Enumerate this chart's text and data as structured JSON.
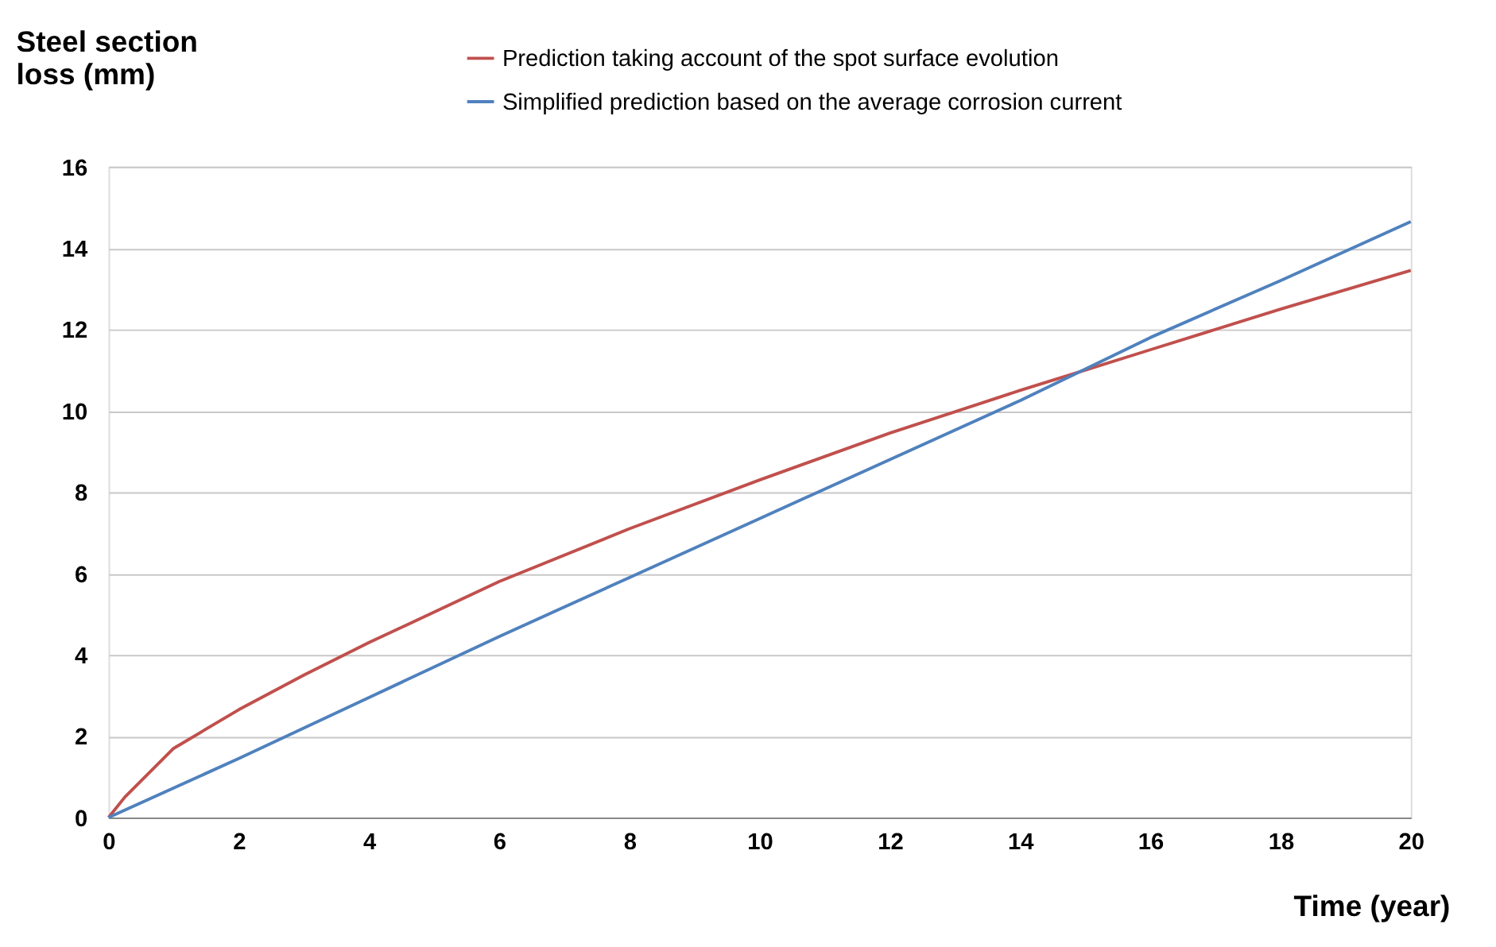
{
  "chart_data": {
    "type": "line",
    "xlabel": "Time (year)",
    "ylabel": "Steel section\nloss (mm)",
    "xlim": [
      0,
      20
    ],
    "xticks": [
      0,
      2,
      4,
      6,
      8,
      10,
      12,
      14,
      16,
      18,
      20
    ],
    "ylim": [
      0,
      16
    ],
    "yticks": [
      0,
      2,
      4,
      6,
      8,
      10,
      12,
      14,
      16
    ],
    "grid": "y",
    "legend": "top",
    "line_style": "solid",
    "marker": "none",
    "series": [
      {
        "name": "Prediction taking account of the spot surface evolution",
        "color": "#c0504d",
        "x": [
          0,
          0.25,
          0.5,
          1,
          2,
          3,
          4,
          6,
          8,
          10,
          12,
          14,
          15,
          16,
          18,
          20
        ],
        "values": [
          0,
          0.5,
          0.9,
          1.7,
          2.65,
          3.5,
          4.3,
          5.8,
          7.1,
          8.3,
          9.45,
          10.5,
          11.0,
          11.5,
          12.5,
          13.45
        ]
      },
      {
        "name": "Simplified prediction based on the average corrosion current",
        "color": "#4f81bd",
        "x": [
          0,
          2,
          4,
          6,
          8,
          10,
          12,
          14,
          16,
          18,
          20
        ],
        "values": [
          0,
          1.45,
          2.95,
          4.45,
          5.9,
          7.35,
          8.8,
          10.25,
          11.8,
          13.2,
          14.65
        ]
      }
    ]
  }
}
